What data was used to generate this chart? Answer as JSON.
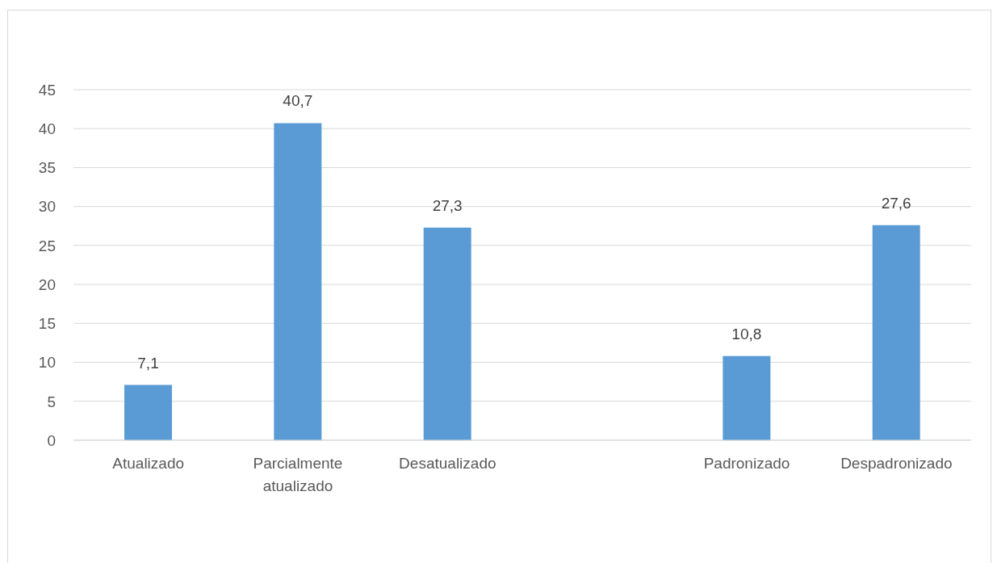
{
  "chart_data": {
    "type": "bar",
    "categories": [
      "Atualizado",
      "Parcialmente atualizado",
      "Desatualizado",
      null,
      "Padronizado",
      "Despadronizado"
    ],
    "values": [
      7.1,
      40.7,
      27.3,
      null,
      10.8,
      27.6
    ],
    "value_labels": [
      "7,1",
      "40,7",
      "27,3",
      null,
      "10,8",
      "27,6"
    ],
    "color": "#5b9bd5",
    "ylim": [
      0,
      45
    ],
    "yticks": [
      0,
      5,
      10,
      15,
      20,
      25,
      30,
      35,
      40,
      45
    ],
    "grid": "y"
  }
}
